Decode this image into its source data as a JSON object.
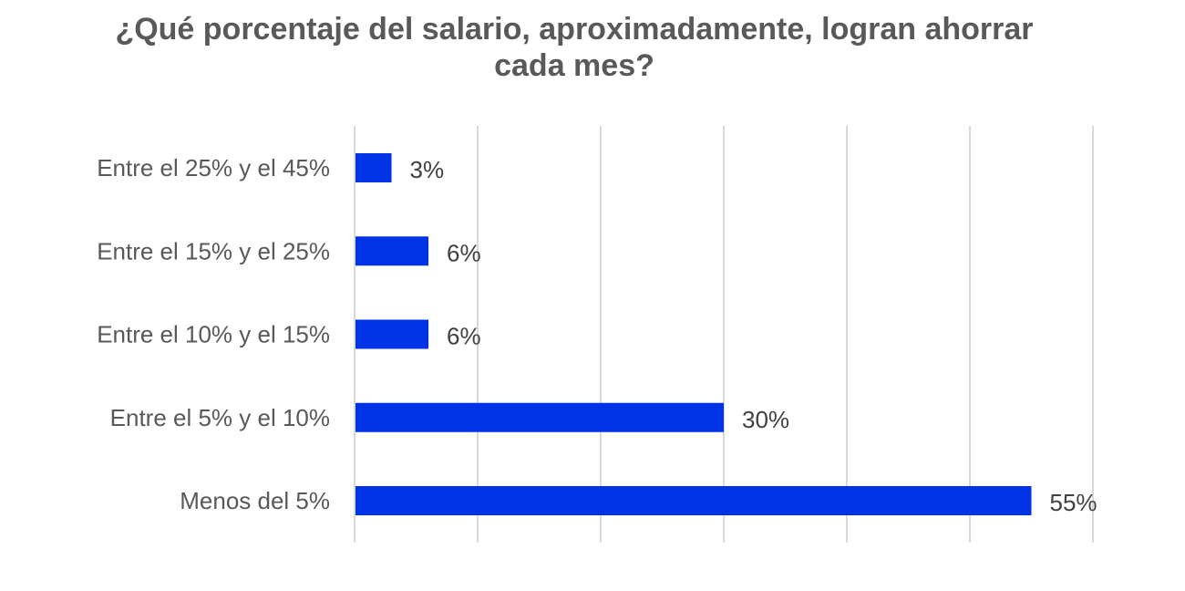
{
  "chart_data": {
    "type": "bar",
    "orientation": "horizontal",
    "title": "¿Qué porcentaje del salario, aproximadamente, logran ahorrar cada mes?",
    "title_lines": [
      "¿Qué porcentaje del salario, aproximadamente, logran ahorrar",
      "cada mes?"
    ],
    "categories": [
      "Entre el 25% y el 45%",
      "Entre el 15% y el 25%",
      "Entre el 10% y el 15%",
      "Entre el 5% y el 10%",
      "Menos del 5%"
    ],
    "values": [
      3,
      6,
      6,
      30,
      55
    ],
    "value_labels": [
      "3%",
      "6%",
      "6%",
      "30%",
      "55%"
    ],
    "xlim": [
      0,
      60
    ],
    "grid": true,
    "legend": "none",
    "colors": {
      "bar": "#0033E6",
      "grid": "#D9D9D9",
      "text": "#595959"
    }
  }
}
